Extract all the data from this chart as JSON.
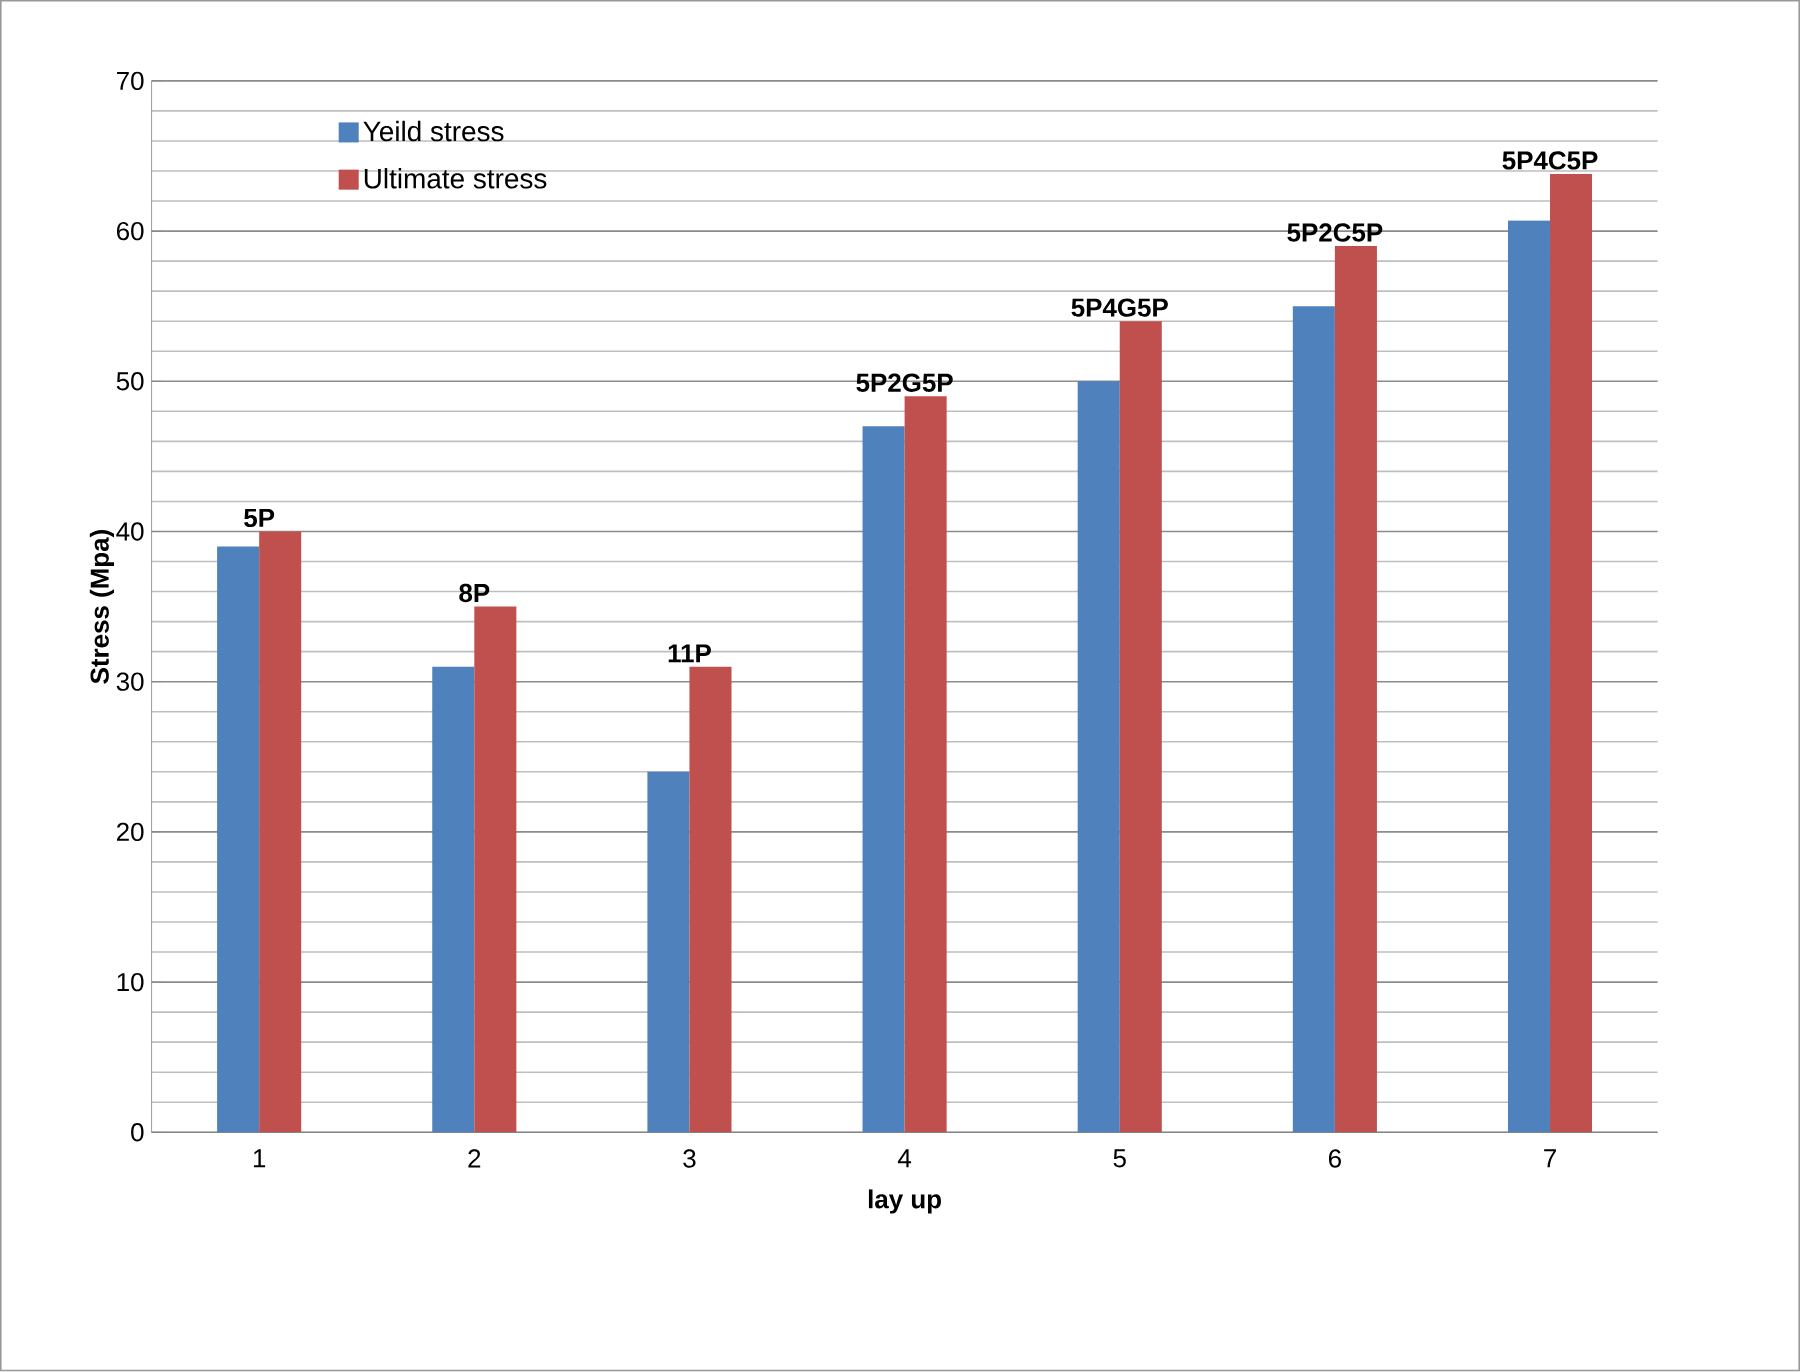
{
  "chart_data": {
    "type": "bar",
    "xlabel": "lay up",
    "ylabel": "Stress (Mpa)",
    "categories": [
      "1",
      "2",
      "3",
      "4",
      "5",
      "6",
      "7"
    ],
    "series": [
      {
        "name": "Yeild stress",
        "color": "#4f81bd",
        "values": [
          39,
          31,
          24,
          47,
          50,
          55,
          60.7
        ]
      },
      {
        "name": "Ultimate stress",
        "color": "#c0504d",
        "values": [
          40,
          35,
          31,
          49,
          54,
          59,
          63.8
        ]
      }
    ],
    "ylim": [
      0,
      70
    ],
    "yticks": [
      0,
      10,
      20,
      30,
      40,
      50,
      60,
      70
    ],
    "grid": "y",
    "legend": "top left",
    "annotations": [
      {
        "text": "5P",
        "x": "1",
        "y": 40
      },
      {
        "text": "8P",
        "x": "2",
        "y": 35
      },
      {
        "text": "11P",
        "x": "3",
        "y": 31
      },
      {
        "text": "5P2G5P",
        "x": "4",
        "y": 49
      },
      {
        "text": "5P4G5P",
        "x": "5",
        "y": 54
      },
      {
        "text": "5P2C5P",
        "x": "6",
        "y": 59
      },
      {
        "text": "5P4C5P",
        "x": "7",
        "y": 63.8
      }
    ]
  }
}
